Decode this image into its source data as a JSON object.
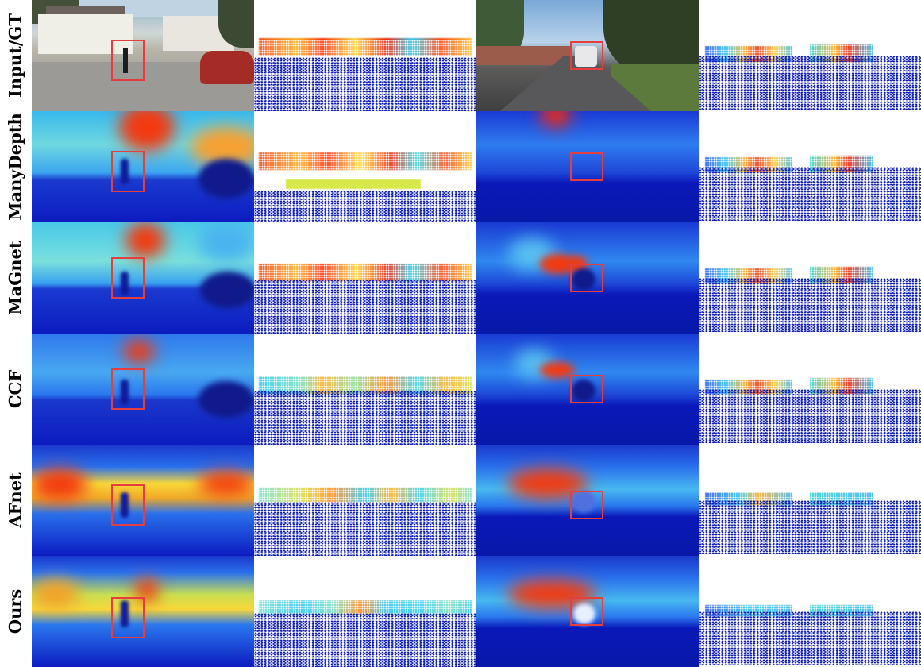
{
  "figure": {
    "row_labels": [
      "Input/GT",
      "ManyDepth",
      "MaGnet",
      "CCF",
      "AFnet",
      "Ours"
    ],
    "colors": {
      "depth_far": "#0a14b4",
      "depth_near": "#ff2a00",
      "highlight_box": "#e53e3e"
    }
  }
}
